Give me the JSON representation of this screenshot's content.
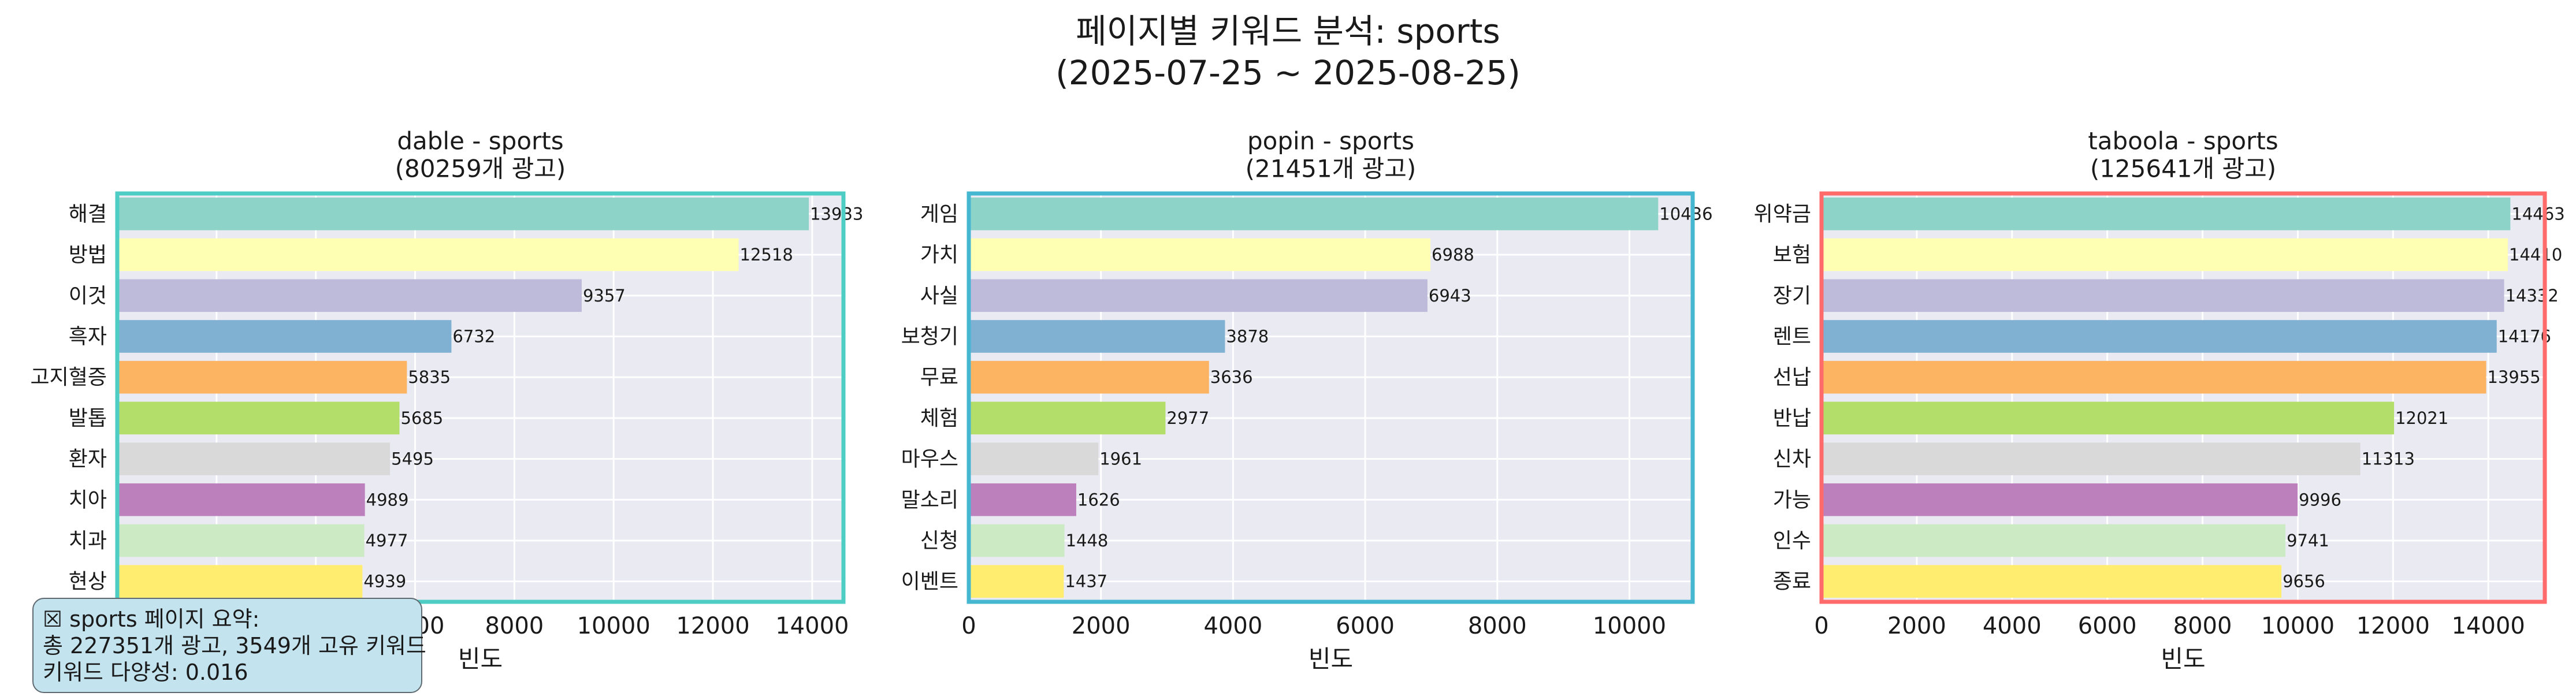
{
  "title_line1": "페이지별 키워드 분석: sports",
  "title_line2": "(2025-07-25 ~ 2025-08-25)",
  "colors": [
    "#8dd3c7",
    "#ffffb3",
    "#bebada",
    "#80b1d3",
    "#fdb462",
    "#b3de69",
    "#d9d9d9",
    "#bc80bd",
    "#ccebc5",
    "#ffed6f"
  ],
  "chart_data": [
    {
      "type": "bar",
      "orientation": "horizontal",
      "title_line1": "dable - sports",
      "title_line2": "(80259개 광고)",
      "xlabel": "빈도",
      "xlim": [
        0,
        14630
      ],
      "xticks": [
        0,
        2000,
        4000,
        6000,
        8000,
        10000,
        12000,
        14000
      ],
      "frame_color": "#4ecdc4",
      "grid": true,
      "categories": [
        "해결",
        "방법",
        "이것",
        "흑자",
        "고지혈증",
        "발톱",
        "환자",
        "치아",
        "치과",
        "현상"
      ],
      "values": [
        13933,
        12518,
        9357,
        6732,
        5835,
        5685,
        5495,
        4989,
        4977,
        4939
      ]
    },
    {
      "type": "bar",
      "orientation": "horizontal",
      "title_line1": "popin - sports",
      "title_line2": "(21451개 광고)",
      "xlabel": "빈도",
      "xlim": [
        0,
        10958
      ],
      "xticks": [
        0,
        2000,
        4000,
        6000,
        8000,
        10000
      ],
      "frame_color": "#45b7d1",
      "grid": true,
      "categories": [
        "게임",
        "가치",
        "사실",
        "보청기",
        "무료",
        "체험",
        "마우스",
        "말소리",
        "신청",
        "이벤트"
      ],
      "values": [
        10436,
        6988,
        6943,
        3878,
        3636,
        2977,
        1961,
        1626,
        1448,
        1437
      ]
    },
    {
      "type": "bar",
      "orientation": "horizontal",
      "title_line1": "taboola - sports",
      "title_line2": "(125641개 광고)",
      "xlabel": "빈도",
      "xlim": [
        0,
        15186
      ],
      "xticks": [
        0,
        2000,
        4000,
        6000,
        8000,
        10000,
        12000,
        14000
      ],
      "frame_color": "#ff6b6b",
      "grid": true,
      "categories": [
        "위약금",
        "보험",
        "장기",
        "렌트",
        "선납",
        "반납",
        "신차",
        "가능",
        "인수",
        "종료"
      ],
      "values": [
        14463,
        14410,
        14332,
        14176,
        13955,
        12021,
        11313,
        9996,
        9741,
        9656
      ]
    }
  ],
  "summary": {
    "line1": "☒ sports 페이지 요약:",
    "line2": "총 227351개 광고, 3549개 고유 키워드",
    "line3": "키워드 다양성: 0.016"
  }
}
